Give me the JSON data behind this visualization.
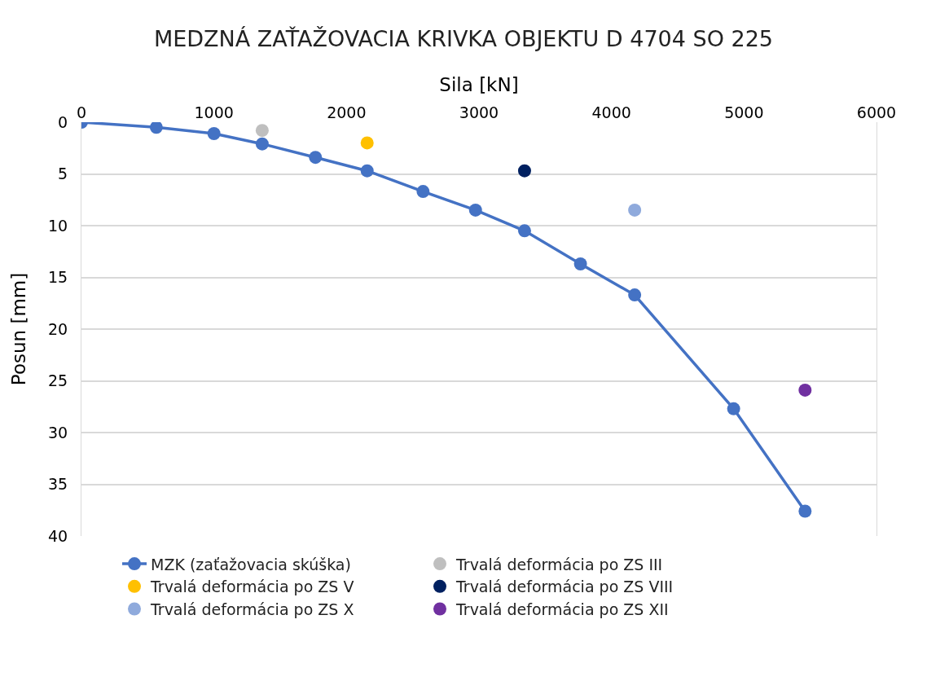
{
  "chart_data": {
    "type": "line",
    "title": "MEDZNÁ ZAŤAŽOVACIA KRIVKA OBJEKTU D 4704 SO 225",
    "xlabel": "Sila [kN]",
    "ylabel": "Posun [mm]",
    "xlim": [
      0,
      6000
    ],
    "xticks": [
      0,
      1000,
      2000,
      3000,
      4000,
      5000,
      6000
    ],
    "ylim": [
      40,
      0
    ],
    "yticks": [
      0,
      5,
      10,
      15,
      20,
      25,
      30,
      35,
      40
    ],
    "grid": "y",
    "legend": "bottom",
    "marker": "circle",
    "line_style": "solid",
    "series": [
      {
        "name": "MZK (zaťažovacia skúška)",
        "color": "#4472c4",
        "x": [
          0,
          565,
          1000,
          1364,
          1766,
          2156,
          2578,
          2974,
          3344,
          3766,
          4175,
          4922,
          5461
        ],
        "values": [
          0,
          0.5,
          1.1,
          2.1,
          3.4,
          4.7,
          6.7,
          8.5,
          10.5,
          13.7,
          16.7,
          27.7,
          37.6
        ]
      },
      {
        "name": "Trvalá deformácia po ZS III",
        "type": "scatter",
        "color": "#bfbfbf",
        "x": [
          1364
        ],
        "values": [
          0.8
        ]
      },
      {
        "name": "Trvalá deformácia po ZS V",
        "type": "scatter",
        "color": "#ffc000",
        "x": [
          2156
        ],
        "values": [
          2.0
        ]
      },
      {
        "name": "Trvalá deformácia po ZS VIII",
        "type": "scatter",
        "color": "#002060",
        "x": [
          3344
        ],
        "values": [
          4.7
        ]
      },
      {
        "name": "Trvalá deformácia po ZS X",
        "type": "scatter",
        "color": "#8faadc",
        "x": [
          4175
        ],
        "values": [
          8.5
        ]
      },
      {
        "name": "Trvalá deformácia po ZS XII",
        "type": "scatter",
        "color": "#7030a0",
        "x": [
          5461
        ],
        "values": [
          25.9
        ]
      }
    ]
  }
}
